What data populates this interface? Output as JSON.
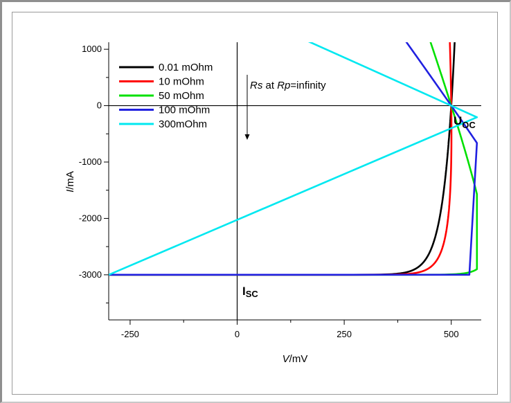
{
  "chart_data": {
    "type": "line",
    "xlabel_italic": "V",
    "xlabel_unit": "/mV",
    "ylabel_italic": "I",
    "ylabel_unit": "/mA",
    "xlim": [
      -300,
      570
    ],
    "ylim": [
      -3800,
      1100
    ],
    "x_ticks": [
      -250,
      0,
      250,
      500
    ],
    "y_ticks": [
      1000,
      0,
      -1000,
      -2000,
      -3000
    ],
    "x_minor_step": 125,
    "y_minor_step": 500,
    "isc_mA": -3000,
    "voc_mV": 500,
    "series": [
      {
        "name": "0.01 mOhm",
        "color": "#000000",
        "rs_mOhm": 0.01
      },
      {
        "name": "10 mOhm",
        "color": "#ff0000",
        "rs_mOhm": 10
      },
      {
        "name": "50 mOhm",
        "color": "#00e000",
        "rs_mOhm": 50
      },
      {
        "name": "100 mOhm",
        "color": "#2020e0",
        "rs_mOhm": 100
      },
      {
        "name": "300mOhm",
        "color": "#00e8f0",
        "rs_mOhm": 300
      }
    ],
    "annotations": {
      "rs_italic": "Rs",
      "at": " at ",
      "rp_italic": "Rp",
      "rp_value": "=infinity",
      "isc_main": "I",
      "isc_sub": "SC",
      "uoc_main": "U",
      "uoc_sub": "OC"
    },
    "legend_position": "top-left",
    "grid": false
  }
}
